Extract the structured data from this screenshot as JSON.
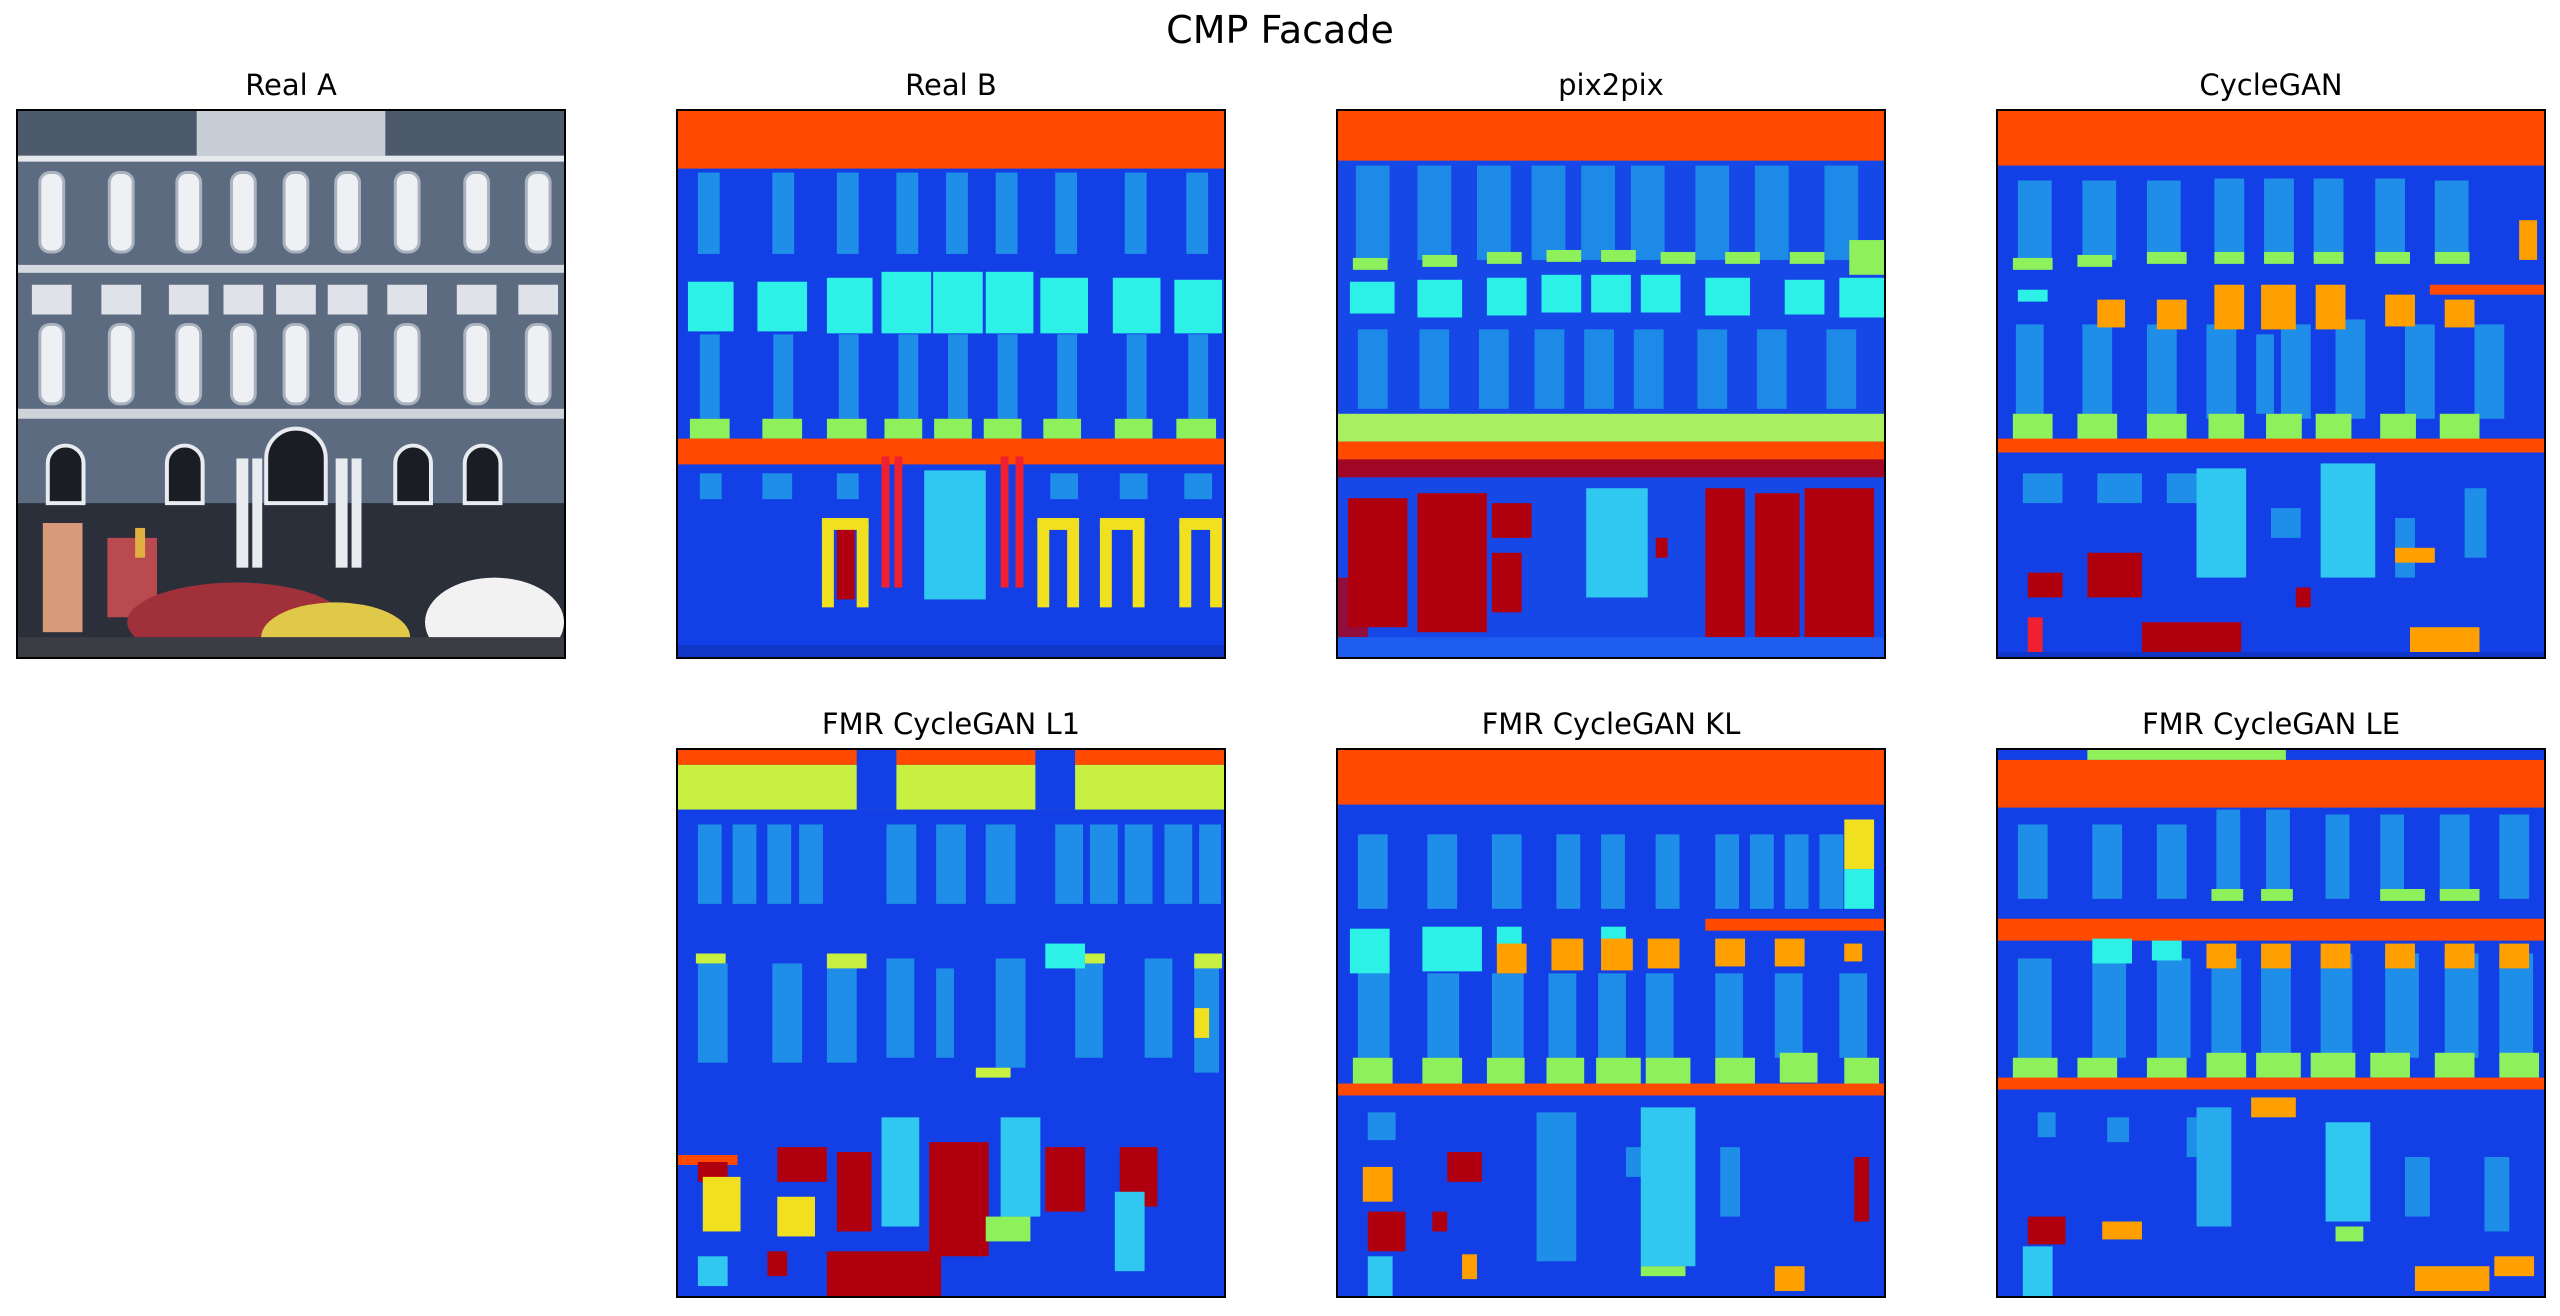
{
  "figure": {
    "title": "CMP Facade"
  },
  "panels": [
    {
      "id": "real-a",
      "title": "Real A"
    },
    {
      "id": "real-b",
      "title": "Real B"
    },
    {
      "id": "pix2pix",
      "title": "pix2pix"
    },
    {
      "id": "cyclegan",
      "title": "CycleGAN"
    },
    {
      "id": "fmr-l1",
      "title": "FMR CycleGAN L1"
    },
    {
      "id": "fmr-kl",
      "title": "FMR CycleGAN KL"
    },
    {
      "id": "fmr-le",
      "title": "FMR CycleGAN LE"
    }
  ],
  "palette": {
    "background": "#1240e6",
    "facade": "#1a4df0",
    "window": "#1e8ee8",
    "sill": "#8ef05a",
    "balcony": "#2df0e6",
    "cornice": "#ff4a00",
    "shop": "#b00010",
    "door": "#30c8f0",
    "pillar": "#f02030",
    "deco": "#f0e020",
    "blind": "#ffa000"
  }
}
